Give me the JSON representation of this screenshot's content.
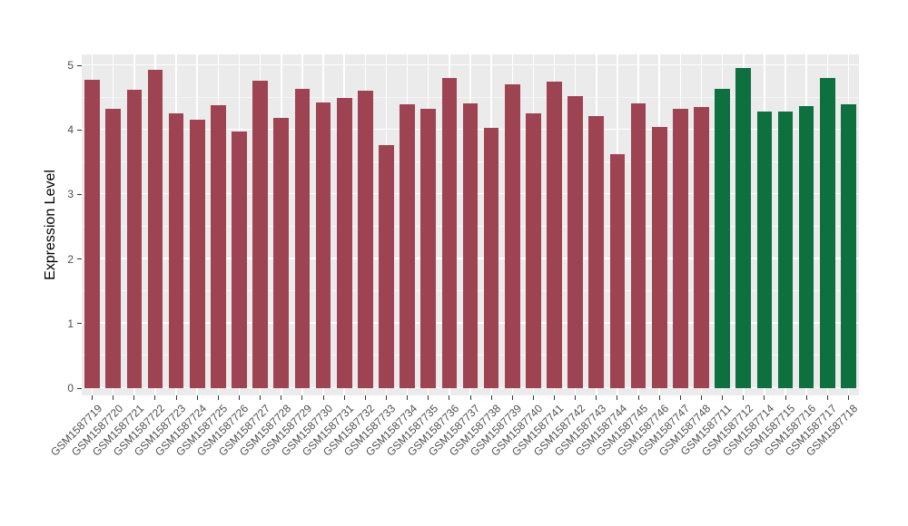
{
  "figure": {
    "background": "#ffffff",
    "panel_background": "#ebebeb",
    "gridline_color": "#ffffff",
    "tick_color": "#333333",
    "tick_label_color": "#4d4d4d"
  },
  "chart_data": {
    "type": "bar",
    "title": "",
    "xlabel": "",
    "ylabel": "Expression Level",
    "ylim": [
      0,
      5
    ],
    "yticks": [
      0,
      1,
      2,
      3,
      4,
      5
    ],
    "grid": true,
    "legend": "none",
    "categories": [
      "GSM1587719",
      "GSM1587720",
      "GSM1587721",
      "GSM1587722",
      "GSM1587723",
      "GSM1587724",
      "GSM1587725",
      "GSM1587726",
      "GSM1587727",
      "GSM1587728",
      "GSM1587729",
      "GSM1587730",
      "GSM1587731",
      "GSM1587732",
      "GSM1587733",
      "GSM1587734",
      "GSM1587735",
      "GSM1587736",
      "GSM1587737",
      "GSM1587738",
      "GSM1587739",
      "GSM1587740",
      "GSM1587741",
      "GSM1587742",
      "GSM1587743",
      "GSM1587744",
      "GSM1587745",
      "GSM1587746",
      "GSM1587747",
      "GSM1587748",
      "GSM1587711",
      "GSM1587712",
      "GSM1587714",
      "GSM1587715",
      "GSM1587716",
      "GSM1587717",
      "GSM1587718"
    ],
    "values": [
      4.78,
      4.32,
      4.62,
      4.93,
      4.26,
      4.16,
      4.38,
      3.97,
      4.76,
      4.19,
      4.64,
      4.42,
      4.5,
      4.6,
      3.77,
      4.4,
      4.32,
      4.8,
      4.41,
      4.03,
      4.7,
      4.26,
      4.75,
      4.52,
      4.22,
      3.62,
      4.41,
      4.04,
      4.32,
      4.36,
      4.63,
      4.96,
      4.29,
      4.29,
      4.37,
      4.8,
      4.4
    ],
    "bar_colors": [
      "#9e4352",
      "#9e4352",
      "#9e4352",
      "#9e4352",
      "#9e4352",
      "#9e4352",
      "#9e4352",
      "#9e4352",
      "#9e4352",
      "#9e4352",
      "#9e4352",
      "#9e4352",
      "#9e4352",
      "#9e4352",
      "#9e4352",
      "#9e4352",
      "#9e4352",
      "#9e4352",
      "#9e4352",
      "#9e4352",
      "#9e4352",
      "#9e4352",
      "#9e4352",
      "#9e4352",
      "#9e4352",
      "#9e4352",
      "#9e4352",
      "#9e4352",
      "#9e4352",
      "#9e4352",
      "#0e6f3f",
      "#0e6f3f",
      "#0e6f3f",
      "#0e6f3f",
      "#0e6f3f",
      "#0e6f3f",
      "#0e6f3f"
    ],
    "group_color_legend": {
      "maroon": "#9e4352",
      "green": "#0e6f3f"
    }
  }
}
